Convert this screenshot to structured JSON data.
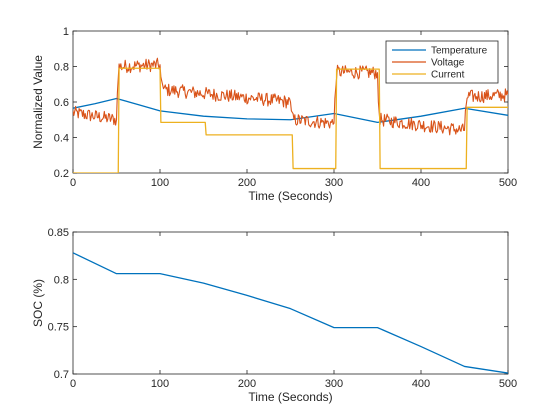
{
  "chart_data": [
    {
      "type": "line",
      "xlabel": "Time (Seconds)",
      "ylabel": "Normalized Value",
      "xlim": [
        0,
        500
      ],
      "ylim": [
        0.2,
        1.0
      ],
      "xticks": [
        0,
        100,
        200,
        300,
        400,
        500
      ],
      "yticks": [
        0.2,
        0.4,
        0.6,
        0.8,
        1.0
      ],
      "xtick_labels": [
        "0",
        "100",
        "200",
        "300",
        "400",
        "500"
      ],
      "ytick_labels": [
        "0.2",
        "0.4",
        "0.6",
        "0.8",
        "1"
      ],
      "grid": false,
      "legend_position": "top-right",
      "series": [
        {
          "name": "Temperature",
          "color": "#0072BD",
          "x": [
            0,
            25,
            50,
            75,
            100,
            150,
            200,
            250,
            300,
            350,
            400,
            450,
            500
          ],
          "y": [
            0.565,
            0.59,
            0.62,
            0.585,
            0.55,
            0.52,
            0.505,
            0.5,
            0.535,
            0.485,
            0.52,
            0.565,
            0.525
          ]
        },
        {
          "name": "Voltage",
          "color": "#D95319",
          "noisy": true,
          "x": [
            0,
            50,
            51,
            53,
            100,
            101,
            104,
            250,
            251,
            253,
            300,
            301,
            303,
            350,
            351,
            353,
            450,
            451,
            453,
            500
          ],
          "y": [
            0.54,
            0.5,
            0.65,
            0.8,
            0.81,
            0.74,
            0.67,
            0.6,
            0.55,
            0.5,
            0.48,
            0.62,
            0.77,
            0.765,
            0.6,
            0.5,
            0.44,
            0.55,
            0.63,
            0.64
          ]
        },
        {
          "name": "Current",
          "color": "#EDB120",
          "x": [
            0,
            52,
            53,
            100,
            101,
            152,
            153,
            252,
            253,
            302,
            303,
            352,
            353,
            452,
            453,
            500
          ],
          "y": [
            0.2,
            0.2,
            0.79,
            0.79,
            0.485,
            0.485,
            0.415,
            0.415,
            0.225,
            0.225,
            0.785,
            0.785,
            0.225,
            0.225,
            0.57,
            0.57
          ]
        }
      ]
    },
    {
      "type": "line",
      "xlabel": "Time (Seconds)",
      "ylabel": "SOC (%)",
      "xlim": [
        0,
        500
      ],
      "ylim": [
        0.7,
        0.85
      ],
      "xticks": [
        0,
        100,
        200,
        300,
        400,
        500
      ],
      "yticks": [
        0.7,
        0.75,
        0.8,
        0.85
      ],
      "xtick_labels": [
        "0",
        "100",
        "200",
        "300",
        "400",
        "500"
      ],
      "ytick_labels": [
        "0.7",
        "0.75",
        "0.8",
        "0.85"
      ],
      "grid": false,
      "series": [
        {
          "color": "#0072BD",
          "x": [
            0,
            50,
            100,
            150,
            200,
            250,
            300,
            350,
            400,
            450,
            500
          ],
          "y": [
            0.828,
            0.806,
            0.806,
            0.796,
            0.783,
            0.769,
            0.749,
            0.749,
            0.729,
            0.708,
            0.701
          ]
        }
      ]
    }
  ]
}
